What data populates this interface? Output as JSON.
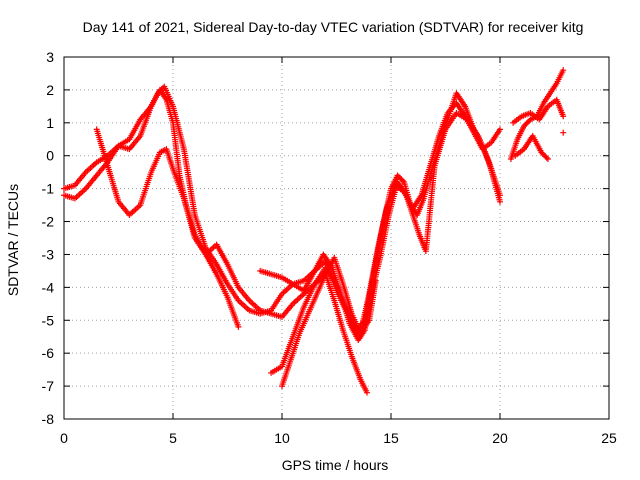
{
  "chart_data": {
    "type": "scatter",
    "title": "Day 141 of 2021, Sidereal Day-to-day VTEC variation (SDTVAR) for receiver kitg",
    "xlabel": "GPS time / hours",
    "ylabel": "SDTVAR / TECUs",
    "xlim": [
      0,
      25
    ],
    "ylim": [
      -8,
      3
    ],
    "x_ticks": [
      "0",
      "5",
      "10",
      "15",
      "20",
      "25"
    ],
    "y_ticks": [
      "-8",
      "-7",
      "-6",
      "-5",
      "-4",
      "-3",
      "-2",
      "-1",
      "0",
      "1",
      "2",
      "3"
    ],
    "grid": true,
    "marker": "+",
    "color": "#ff0000",
    "series": [
      {
        "x": [
          0.0,
          0.5,
          1.0,
          1.5,
          2.0,
          2.5,
          3.0,
          3.5,
          4.0,
          4.4,
          4.7,
          5.0,
          5.3,
          5.6,
          6.0,
          6.5,
          7.0,
          7.5,
          8.0
        ],
        "y": [
          -1.0,
          -0.9,
          -0.5,
          -0.2,
          0.0,
          0.3,
          0.2,
          0.6,
          1.5,
          2.0,
          1.7,
          1.0,
          -0.6,
          -1.5,
          -2.4,
          -3.0,
          -3.6,
          -4.3,
          -5.2
        ]
      },
      {
        "x": [
          0.0,
          0.5,
          1.0,
          1.5,
          2.0,
          2.5,
          3.0,
          3.5,
          4.0,
          4.3,
          4.6,
          5.0,
          5.5,
          6.0,
          6.5,
          7.0,
          7.5,
          8.0,
          8.5,
          9.0,
          9.5,
          10.0,
          10.5,
          11.0,
          11.5,
          12.0,
          12.5,
          13.0,
          13.5,
          14.0,
          14.3
        ],
        "y": [
          -1.2,
          -1.3,
          -1.0,
          -0.6,
          -0.2,
          0.3,
          0.5,
          1.1,
          1.5,
          1.9,
          2.1,
          1.5,
          0.2,
          -1.8,
          -2.8,
          -3.3,
          -3.9,
          -4.4,
          -4.7,
          -4.8,
          -4.7,
          -4.2,
          -3.9,
          -3.8,
          -3.5,
          -3.2,
          -4.1,
          -4.8,
          -5.5,
          -5.0,
          -3.8
        ]
      },
      {
        "x": [
          1.5,
          2.0,
          2.5,
          3.0,
          3.5,
          4.0,
          4.4,
          4.7,
          5.0,
          5.5,
          6.0,
          6.5,
          7.0,
          7.5,
          8.0,
          8.5,
          9.0,
          9.5,
          10.0,
          10.5,
          11.0,
          11.5,
          12.0,
          12.4,
          12.8,
          13.2,
          13.6,
          13.9
        ],
        "y": [
          0.8,
          -0.3,
          -1.4,
          -1.8,
          -1.5,
          -0.5,
          0.1,
          0.2,
          -0.4,
          -1.3,
          -2.5,
          -3.0,
          -2.7,
          -3.3,
          -4.0,
          -4.4,
          -4.7,
          -4.8,
          -4.9,
          -4.5,
          -4.2,
          -3.9,
          -3.6,
          -4.4,
          -5.3,
          -6.1,
          -6.8,
          -7.2
        ]
      },
      {
        "x": [
          9.0,
          9.5,
          10.0,
          10.5,
          11.0,
          11.5,
          11.9,
          12.3,
          12.7,
          13.1,
          13.5,
          13.8,
          14.1,
          14.5,
          14.9,
          15.3,
          15.7,
          16.0,
          16.3,
          16.6,
          17.0,
          17.5,
          18.0,
          18.5,
          19.0,
          19.5,
          20.0
        ],
        "y": [
          -3.5,
          -3.6,
          -3.7,
          -3.9,
          -4.1,
          -3.5,
          -3.0,
          -3.4,
          -4.2,
          -5.1,
          -5.6,
          -5.3,
          -4.2,
          -3.1,
          -1.8,
          -0.8,
          -1.2,
          -1.8,
          -2.4,
          -2.9,
          -0.3,
          0.8,
          1.3,
          1.1,
          0.6,
          -0.2,
          -1.4
        ]
      },
      {
        "x": [
          9.5,
          10.0,
          10.5,
          11.0,
          11.5,
          12.0,
          12.5,
          13.0,
          13.4,
          13.8,
          14.2,
          14.6,
          15.0,
          15.3,
          15.6,
          15.9,
          16.2,
          16.5,
          16.8,
          17.2,
          17.6,
          18.0,
          18.4,
          18.8,
          19.2,
          19.6,
          20.0
        ],
        "y": [
          -6.6,
          -6.4,
          -5.5,
          -4.6,
          -3.9,
          -3.4,
          -3.9,
          -4.7,
          -5.3,
          -5.0,
          -3.6,
          -2.2,
          -1.0,
          -0.6,
          -0.8,
          -1.5,
          -1.8,
          -1.3,
          -0.6,
          0.3,
          1.1,
          1.9,
          1.5,
          0.8,
          0.3,
          -0.4,
          -1.2
        ]
      },
      {
        "x": [
          10.0,
          10.4,
          10.8,
          11.2,
          11.6,
          12.0,
          12.4,
          12.8,
          13.2,
          13.6,
          14.0,
          14.4,
          14.8,
          15.2,
          15.6,
          16.0,
          16.4,
          16.8,
          17.2,
          17.6,
          18.0,
          18.4,
          18.8,
          19.2,
          19.6,
          20.0
        ],
        "y": [
          -7.0,
          -6.2,
          -5.4,
          -4.8,
          -4.2,
          -3.6,
          -3.1,
          -3.9,
          -4.8,
          -5.4,
          -4.2,
          -2.8,
          -1.6,
          -0.9,
          -1.1,
          -1.6,
          -1.2,
          -0.3,
          0.6,
          1.3,
          1.6,
          1.2,
          0.7,
          0.2,
          0.4,
          0.8
        ]
      },
      {
        "x": [
          20.5,
          20.8,
          21.1,
          21.4,
          21.7,
          22.0,
          22.3,
          22.6,
          22.9
        ],
        "y": [
          -0.1,
          0.5,
          0.9,
          1.1,
          1.2,
          1.6,
          1.9,
          2.2,
          2.6
        ]
      },
      {
        "x": [
          20.6,
          21.0,
          21.4,
          21.8,
          22.2,
          22.6,
          22.9
        ],
        "y": [
          1.0,
          1.2,
          1.3,
          1.1,
          1.5,
          1.7,
          1.2
        ]
      },
      {
        "x": [
          20.7,
          21.1,
          21.5,
          21.9,
          22.2
        ],
        "y": [
          0.0,
          0.2,
          0.6,
          0.1,
          -0.1
        ]
      },
      {
        "x": [
          22.9
        ],
        "y": [
          0.7
        ]
      }
    ]
  }
}
